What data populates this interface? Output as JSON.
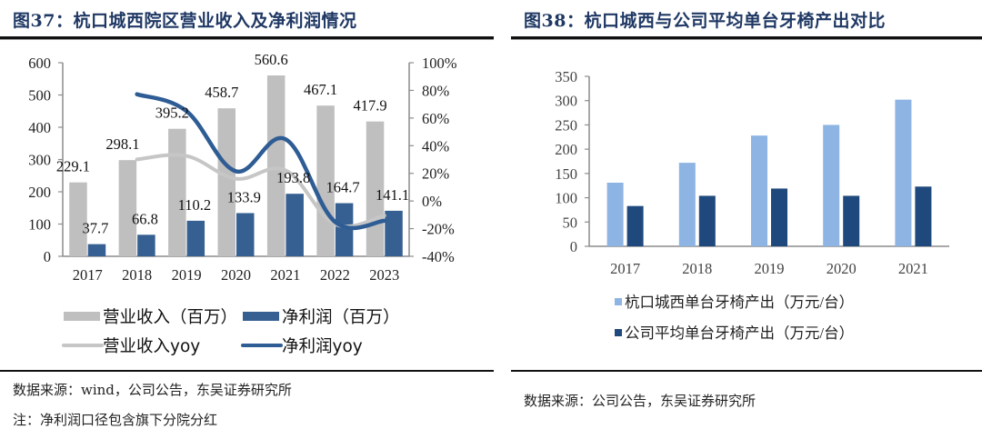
{
  "left_panel": {
    "title": "图37：杭口城西院区营业收入及净利润情况",
    "source": "数据来源：wind，公司公告，东吴证券研究所",
    "note": "注：净利润口径包含旗下分院分红"
  },
  "right_panel": {
    "title": "图38：杭口城西与公司平均单台牙椅产出对比",
    "source": "数据来源：公司公告，东吴证券研究所"
  },
  "chart_data": [
    {
      "type": "bar",
      "title": "图37：杭口城西院区营业收入及净利润情况",
      "categories": [
        "2017",
        "2018",
        "2019",
        "2020",
        "2021",
        "2022",
        "2023"
      ],
      "ylim": [
        0,
        600
      ],
      "y_ticks": [
        "0",
        "100",
        "200",
        "300",
        "400",
        "500",
        "600"
      ],
      "y2lim": [
        -40,
        100
      ],
      "y2_ticks": [
        "-40%",
        "-20%",
        "0%",
        "20%",
        "40%",
        "60%",
        "80%",
        "100%"
      ],
      "grid": false,
      "legend_position": "bottom",
      "series": [
        {
          "name": "营业收入（百万）",
          "kind": "bar",
          "axis": "left",
          "color": "#bfbfbf",
          "values": [
            229.1,
            298.1,
            395.2,
            458.7,
            560.6,
            467.1,
            417.9
          ],
          "labels": [
            "229.1",
            "298.1",
            "395.2",
            "458.7",
            "560.6",
            "467.1",
            "417.9"
          ]
        },
        {
          "name": "净利润（百万）",
          "kind": "bar",
          "axis": "left",
          "color": "#376092",
          "values": [
            37.7,
            66.8,
            110.2,
            133.9,
            193.8,
            164.7,
            141.1
          ],
          "labels": [
            "37.7",
            "66.8",
            "110.2",
            "133.9",
            "193.8",
            "164.7",
            "141.1"
          ]
        },
        {
          "name": "营业收入yoy",
          "kind": "line",
          "axis": "right",
          "color": "#c6c6c6",
          "values": [
            null,
            30.1,
            32.6,
            16.1,
            22.2,
            -16.7,
            -10.5
          ]
        },
        {
          "name": "净利润yoy",
          "kind": "line",
          "axis": "right",
          "color": "#2e5c94",
          "values": [
            null,
            77.2,
            65.0,
            21.5,
            44.7,
            -15.0,
            -14.3
          ]
        }
      ]
    },
    {
      "type": "bar",
      "title": "图38：杭口城西与公司平均单台牙椅产出对比",
      "categories": [
        "2017",
        "2018",
        "2019",
        "2020",
        "2021"
      ],
      "ylim": [
        0,
        350
      ],
      "y_ticks": [
        "0",
        "50",
        "100",
        "150",
        "200",
        "250",
        "300",
        "350"
      ],
      "grid": false,
      "legend_position": "bottom",
      "series": [
        {
          "name": "杭口城西单台牙椅产出（万元/台）",
          "color": "#8eb4e3",
          "values": [
            131,
            172,
            228,
            250,
            302
          ]
        },
        {
          "name": "公司平均单台牙椅产出（万元/台）",
          "color": "#1f497d",
          "values": [
            83,
            104,
            119,
            104,
            123
          ]
        }
      ]
    }
  ]
}
